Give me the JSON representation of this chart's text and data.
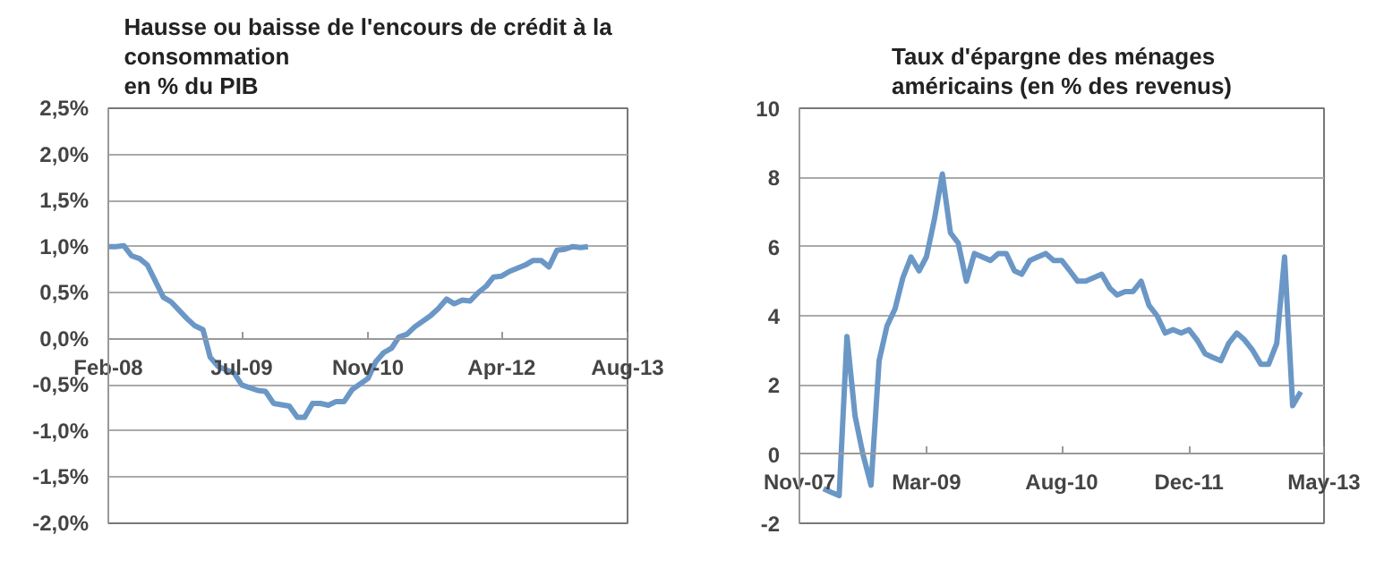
{
  "chart_data": [
    {
      "type": "line",
      "title": "Hausse ou baisse de l'encours de crédit à la\nconsommation\nen % du PIB",
      "x": [
        "2008-02",
        "2008-03",
        "2008-04",
        "2008-05",
        "2008-06",
        "2008-07",
        "2008-09",
        "2008-10",
        "2008-12",
        "2009-01",
        "2009-02",
        "2009-03",
        "2009-04",
        "2009-06",
        "2009-07",
        "2009-09",
        "2009-10",
        "2009-11",
        "2010-01",
        "2010-02",
        "2010-03",
        "2010-04",
        "2010-05",
        "2010-06",
        "2010-07",
        "2010-08",
        "2010-09",
        "2010-11",
        "2010-12",
        "2011-01",
        "2011-02",
        "2011-03",
        "2011-04",
        "2011-05",
        "2011-07",
        "2011-08",
        "2011-09",
        "2011-10",
        "2011-11",
        "2011-12",
        "2012-01",
        "2012-02",
        "2012-03",
        "2012-04",
        "2012-05",
        "2012-07",
        "2012-08",
        "2012-09",
        "2012-10",
        "2012-11",
        "2012-12",
        "2013-01",
        "2013-02",
        "2013-03"
      ],
      "series": [
        {
          "color": "#6a97c6",
          "values": [
            1.0,
            1.0,
            1.01,
            0.9,
            0.87,
            0.8,
            0.45,
            0.4,
            0.22,
            0.14,
            0.1,
            -0.2,
            -0.3,
            -0.37,
            -0.5,
            -0.56,
            -0.57,
            -0.7,
            -0.73,
            -0.85,
            -0.85,
            -0.7,
            -0.7,
            -0.72,
            -0.68,
            -0.68,
            -0.55,
            -0.43,
            -0.25,
            -0.15,
            -0.1,
            0.02,
            0.05,
            0.13,
            0.25,
            0.33,
            0.43,
            0.38,
            0.42,
            0.41,
            0.5,
            0.57,
            0.67,
            0.68,
            0.73,
            0.8,
            0.85,
            0.85,
            0.78,
            0.96,
            0.97,
            1.0,
            0.99,
            1.0
          ]
        }
      ],
      "xlim": [
        "2008-02",
        "2013-08"
      ],
      "xticks": [
        {
          "value": "2008-02",
          "label": "Feb-08"
        },
        {
          "value": "2009-07",
          "label": "Jul-09"
        },
        {
          "value": "2010-11",
          "label": "Nov-10"
        },
        {
          "value": "2012-04",
          "label": "Apr-12"
        },
        {
          "value": "2013-08",
          "label": "Aug-13"
        }
      ],
      "ylim": [
        -2,
        2.5
      ],
      "yticks": [
        {
          "value": -2,
          "label": "-2,0%"
        },
        {
          "value": -1.5,
          "label": "-1,5%"
        },
        {
          "value": -1,
          "label": "-1,0%"
        },
        {
          "value": -0.5,
          "label": "-0,5%"
        },
        {
          "value": 0,
          "label": "0,0%"
        },
        {
          "value": 0.5,
          "label": "0,5%"
        },
        {
          "value": 1,
          "label": "1,0%"
        },
        {
          "value": 1.5,
          "label": "1,5%"
        },
        {
          "value": 2,
          "label": "2,0%"
        },
        {
          "value": 2.5,
          "label": "2,5%"
        }
      ],
      "grid": "y",
      "marker": "none",
      "line_style": "solid"
    },
    {
      "type": "line",
      "title": "Taux d'épargne des ménages\naméricains (en % des revenus)",
      "x": [
        "2008-02",
        "2008-03",
        "2008-04",
        "2008-05",
        "2008-06",
        "2008-07",
        "2008-08",
        "2008-09",
        "2008-10",
        "2008-11",
        "2008-12",
        "2009-01",
        "2009-02",
        "2009-03",
        "2009-04",
        "2009-05",
        "2009-06",
        "2009-07",
        "2009-08",
        "2009-09",
        "2009-10",
        "2009-11",
        "2009-12",
        "2010-01",
        "2010-02",
        "2010-03",
        "2010-04",
        "2010-05",
        "2010-06",
        "2010-07",
        "2010-08",
        "2010-09",
        "2010-10",
        "2010-11",
        "2010-12",
        "2011-01",
        "2011-02",
        "2011-03",
        "2011-04",
        "2011-05",
        "2011-06",
        "2011-07",
        "2011-08",
        "2011-09",
        "2011-10",
        "2011-11",
        "2011-12",
        "2012-01",
        "2012-02",
        "2012-03",
        "2012-04",
        "2012-05",
        "2012-06",
        "2012-07",
        "2012-08",
        "2012-09",
        "2012-10",
        "2012-11",
        "2012-12",
        "2013-01",
        "2013-02"
      ],
      "series": [
        {
          "color": "#6a97c6",
          "values": [
            -1.0,
            -1.1,
            -1.2,
            3.4,
            1.1,
            0.0,
            -0.9,
            2.7,
            3.7,
            4.2,
            5.1,
            5.7,
            5.3,
            5.7,
            6.8,
            8.1,
            6.4,
            6.1,
            5.0,
            5.8,
            5.7,
            5.6,
            5.8,
            5.8,
            5.3,
            5.2,
            5.6,
            5.7,
            5.8,
            5.6,
            5.6,
            5.3,
            5.0,
            5.0,
            5.1,
            5.2,
            4.8,
            4.6,
            4.7,
            4.7,
            5.0,
            4.3,
            4.0,
            3.5,
            3.6,
            3.5,
            3.6,
            3.3,
            2.9,
            2.8,
            2.7,
            3.2,
            3.5,
            3.3,
            3.0,
            2.6,
            2.6,
            3.2,
            5.7,
            1.4,
            1.8
          ]
        }
      ],
      "xlim": [
        "2007-11",
        "2013-05"
      ],
      "xticks": [
        {
          "value": "2007-11",
          "label": "Nov-07"
        },
        {
          "value": "2009-03",
          "label": "Mar-09"
        },
        {
          "value": "2010-08",
          "label": "Aug-10"
        },
        {
          "value": "2011-12",
          "label": "Dec-11"
        },
        {
          "value": "2013-05",
          "label": "May-13"
        }
      ],
      "ylim": [
        -2,
        10
      ],
      "yticks": [
        -2,
        0,
        2,
        4,
        6,
        8,
        10
      ],
      "grid": "y",
      "marker": "none",
      "line_style": "solid"
    }
  ]
}
